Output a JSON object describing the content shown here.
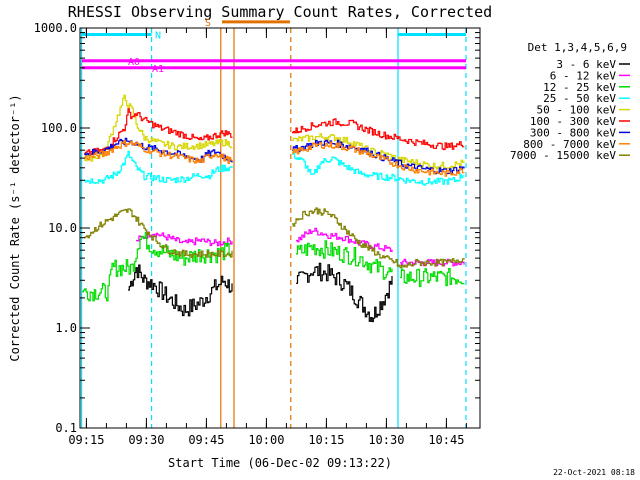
{
  "chart_data": {
    "type": "line",
    "title": "RHESSI Observing Summary Count Rates, Corrected",
    "xlabel": "Start Time (06-Dec-02 09:13:22)",
    "ylabel": "Corrected Count Rate (s⁻¹ detector⁻¹)",
    "yscale": "log",
    "ylim": [
      0.1,
      1000
    ],
    "xlim_min": [
      0,
      100
    ],
    "y_ticks": [
      {
        "value": 0.1,
        "label": "0.1"
      },
      {
        "value": 1,
        "label": "1.0"
      },
      {
        "value": 10,
        "label": "10.0"
      },
      {
        "value": 100,
        "label": "100.0"
      },
      {
        "value": 1000,
        "label": "1000.0"
      }
    ],
    "x_ticks": [
      {
        "value": 1.6,
        "label": "09:15"
      },
      {
        "value": 16.6,
        "label": "09:30"
      },
      {
        "value": 31.6,
        "label": "09:45"
      },
      {
        "value": 46.6,
        "label": "10:00"
      },
      {
        "value": 61.6,
        "label": "10:15"
      },
      {
        "value": 76.6,
        "label": "10:30"
      },
      {
        "value": 91.6,
        "label": "10:45"
      }
    ],
    "legend_title": "Det 1,3,4,5,6,9",
    "series": [
      {
        "name": "3 - 6 keV",
        "color": "#000000",
        "values": [
          [
            1,
            null
          ],
          [
            12,
            2.4
          ],
          [
            14,
            4.0
          ],
          [
            16,
            3.0
          ],
          [
            18,
            2.8
          ],
          [
            22,
            2.0
          ],
          [
            26,
            1.5
          ],
          [
            30,
            1.8
          ],
          [
            34,
            2.6
          ],
          [
            36,
            3.0
          ],
          [
            38,
            2.5
          ],
          [
            38.5,
            null
          ],
          [
            52,
            null
          ],
          [
            54,
            2.8
          ],
          [
            58,
            3.8
          ],
          [
            62,
            3.5
          ],
          [
            66,
            2.8
          ],
          [
            70,
            1.8
          ],
          [
            73,
            1.3
          ],
          [
            76,
            2.0
          ],
          [
            78,
            3.0
          ],
          [
            79.5,
            null
          ]
        ]
      },
      {
        "name": "6 - 12 keV",
        "color": "#ff00ff",
        "values": [
          [
            14,
            7.5
          ],
          [
            18,
            9.0
          ],
          [
            22,
            8.0
          ],
          [
            26,
            7.0
          ],
          [
            30,
            7.5
          ],
          [
            34,
            7.0
          ],
          [
            38,
            7.5
          ],
          [
            38.5,
            null
          ],
          [
            52,
            null
          ],
          [
            54,
            7.5
          ],
          [
            58,
            9.5
          ],
          [
            62,
            8.5
          ],
          [
            66,
            8.0
          ],
          [
            70,
            7.0
          ],
          [
            74,
            6.5
          ],
          [
            78,
            6.0
          ],
          [
            79.5,
            null
          ],
          [
            80,
            4.5
          ],
          [
            88,
            4.5
          ],
          [
            96,
            4.5
          ]
        ]
      },
      {
        "name": "12 - 25 keV",
        "color": "#00dd00",
        "values": [
          [
            0.5,
            2.3
          ],
          [
            7,
            2.3
          ],
          [
            8,
            4.0
          ],
          [
            13,
            4.0
          ],
          [
            15,
            8.5
          ],
          [
            18,
            6.5
          ],
          [
            22,
            5.5
          ],
          [
            26,
            5.0
          ],
          [
            30,
            5.5
          ],
          [
            34,
            5.5
          ],
          [
            38,
            6.0
          ],
          [
            38.5,
            null
          ],
          [
            52,
            null
          ],
          [
            54,
            5.5
          ],
          [
            58,
            6.5
          ],
          [
            62,
            6.0
          ],
          [
            66,
            5.5
          ],
          [
            70,
            5.0
          ],
          [
            74,
            4.0
          ],
          [
            78,
            3.5
          ],
          [
            79.5,
            null
          ],
          [
            80,
            3.2
          ],
          [
            88,
            3.2
          ],
          [
            96,
            3.2
          ]
        ]
      },
      {
        "name": "25 - 50 keV",
        "color": "#00ffff",
        "values": [
          [
            1,
            30
          ],
          [
            6,
            30
          ],
          [
            9,
            35
          ],
          [
            11,
            45
          ],
          [
            12,
            55
          ],
          [
            14,
            40
          ],
          [
            16,
            33
          ],
          [
            18,
            32
          ],
          [
            22,
            30
          ],
          [
            26,
            31
          ],
          [
            30,
            34
          ],
          [
            32,
            33
          ],
          [
            34,
            38
          ],
          [
            36,
            40
          ],
          [
            38,
            40
          ],
          [
            38.5,
            null
          ],
          [
            52,
            null
          ],
          [
            53,
            55
          ],
          [
            56,
            45
          ],
          [
            58,
            32
          ],
          [
            60,
            45
          ],
          [
            63,
            50
          ],
          [
            66,
            42
          ],
          [
            70,
            35
          ],
          [
            74,
            33
          ],
          [
            78,
            32
          ],
          [
            82,
            30
          ],
          [
            86,
            29
          ],
          [
            90,
            29
          ],
          [
            94,
            30
          ],
          [
            96,
            35
          ]
        ]
      },
      {
        "name": "50 - 100 keV",
        "color": "#d6d600",
        "values": [
          [
            1,
            48
          ],
          [
            6,
            55
          ],
          [
            9,
            120
          ],
          [
            11,
            200
          ],
          [
            12,
            170
          ],
          [
            13,
            150
          ],
          [
            14,
            110
          ],
          [
            16,
            80
          ],
          [
            20,
            70
          ],
          [
            24,
            65
          ],
          [
            28,
            66
          ],
          [
            32,
            68
          ],
          [
            34,
            70
          ],
          [
            36,
            72
          ],
          [
            38,
            68
          ],
          [
            38.5,
            null
          ],
          [
            52,
            null
          ],
          [
            53,
            75
          ],
          [
            56,
            78
          ],
          [
            60,
            82
          ],
          [
            64,
            80
          ],
          [
            68,
            72
          ],
          [
            72,
            60
          ],
          [
            76,
            55
          ],
          [
            80,
            48
          ],
          [
            84,
            45
          ],
          [
            88,
            42
          ],
          [
            92,
            42
          ],
          [
            96,
            45
          ]
        ]
      },
      {
        "name": "100 - 300 keV",
        "color": "#ff0000",
        "values": [
          [
            1,
            55
          ],
          [
            6,
            60
          ],
          [
            9,
            80
          ],
          [
            11,
            100
          ],
          [
            12,
            145
          ],
          [
            13,
            130
          ],
          [
            14,
            140
          ],
          [
            16,
            120
          ],
          [
            20,
            100
          ],
          [
            24,
            90
          ],
          [
            28,
            80
          ],
          [
            30,
            75
          ],
          [
            32,
            80
          ],
          [
            34,
            85
          ],
          [
            36,
            90
          ],
          [
            38,
            85
          ],
          [
            38.5,
            null
          ],
          [
            52,
            null
          ],
          [
            53,
            90
          ],
          [
            56,
            100
          ],
          [
            60,
            110
          ],
          [
            64,
            115
          ],
          [
            68,
            110
          ],
          [
            72,
            95
          ],
          [
            76,
            85
          ],
          [
            80,
            78
          ],
          [
            84,
            72
          ],
          [
            88,
            68
          ],
          [
            92,
            65
          ],
          [
            96,
            70
          ]
        ]
      },
      {
        "name": "300 - 800 keV",
        "color": "#0000dd",
        "values": [
          [
            1,
            55
          ],
          [
            6,
            60
          ],
          [
            9,
            70
          ],
          [
            11,
            72
          ],
          [
            12,
            75
          ],
          [
            14,
            70
          ],
          [
            16,
            65
          ],
          [
            20,
            60
          ],
          [
            24,
            55
          ],
          [
            28,
            50
          ],
          [
            30,
            48
          ],
          [
            32,
            55
          ],
          [
            34,
            58
          ],
          [
            36,
            52
          ],
          [
            38,
            48
          ],
          [
            38.5,
            null
          ],
          [
            52,
            null
          ],
          [
            53,
            60
          ],
          [
            56,
            65
          ],
          [
            60,
            72
          ],
          [
            64,
            70
          ],
          [
            68,
            65
          ],
          [
            72,
            58
          ],
          [
            76,
            50
          ],
          [
            80,
            44
          ],
          [
            84,
            40
          ],
          [
            88,
            38
          ],
          [
            92,
            37
          ],
          [
            96,
            40
          ]
        ]
      },
      {
        "name": "800 - 7000 keV",
        "color": "#ff8000",
        "values": [
          [
            1,
            50
          ],
          [
            6,
            55
          ],
          [
            9,
            65
          ],
          [
            11,
            70
          ],
          [
            12,
            72
          ],
          [
            14,
            68
          ],
          [
            16,
            62
          ],
          [
            20,
            56
          ],
          [
            24,
            52
          ],
          [
            28,
            48
          ],
          [
            30,
            46
          ],
          [
            32,
            52
          ],
          [
            34,
            56
          ],
          [
            36,
            50
          ],
          [
            38,
            46
          ],
          [
            38.5,
            null
          ],
          [
            52,
            null
          ],
          [
            53,
            56
          ],
          [
            56,
            62
          ],
          [
            60,
            68
          ],
          [
            64,
            67
          ],
          [
            68,
            62
          ],
          [
            72,
            55
          ],
          [
            76,
            48
          ],
          [
            80,
            42
          ],
          [
            84,
            38
          ],
          [
            88,
            36
          ],
          [
            92,
            35
          ],
          [
            96,
            38
          ]
        ]
      },
      {
        "name": "7000 - 15000 keV",
        "color": "#808000",
        "values": [
          [
            1,
            8.0
          ],
          [
            4,
            10
          ],
          [
            7,
            12
          ],
          [
            10,
            14
          ],
          [
            12,
            15
          ],
          [
            13,
            14
          ],
          [
            15,
            11
          ],
          [
            17,
            9.0
          ],
          [
            19,
            7.5
          ],
          [
            22,
            6.0
          ],
          [
            26,
            5.5
          ],
          [
            30,
            5.5
          ],
          [
            34,
            5.5
          ],
          [
            38,
            5.5
          ],
          [
            38.5,
            null
          ],
          [
            52,
            null
          ],
          [
            53,
            11
          ],
          [
            56,
            14
          ],
          [
            59,
            15
          ],
          [
            62,
            14
          ],
          [
            64,
            12
          ],
          [
            67,
            9.0
          ],
          [
            70,
            7.0
          ],
          [
            73,
            6.0
          ],
          [
            76,
            5.0
          ],
          [
            79,
            4.5
          ],
          [
            80,
            4.0
          ],
          [
            84,
            4.5
          ],
          [
            88,
            4.5
          ],
          [
            92,
            4.5
          ],
          [
            96,
            5.0
          ]
        ]
      }
    ],
    "vertical_lines": [
      {
        "x": 0.4,
        "color": "#00e0ff",
        "style": "solid"
      },
      {
        "x": 17.9,
        "color": "#00e0ff",
        "style": "dashed"
      },
      {
        "x": 35.2,
        "color": "#e07000",
        "style": "solid"
      },
      {
        "x": 38.5,
        "color": "#e07000",
        "style": "solid"
      },
      {
        "x": 52.7,
        "color": "#e07000",
        "style": "dashed"
      },
      {
        "x": 79.5,
        "color": "#00e0ff",
        "style": "solid"
      },
      {
        "x": 96.5,
        "color": "#00e0ff",
        "style": "dashed"
      }
    ],
    "flag_bars": [
      {
        "label": "N",
        "color": "#00e0ff",
        "x_start": 0.5,
        "x_end": 17.9,
        "y": 860,
        "label_x": 19.5
      },
      {
        "label": "S",
        "color": "#e07000",
        "x_start": 35.5,
        "x_end": 52.5,
        "y": 1150,
        "label_x": 32.0
      },
      {
        "label": "A0",
        "color": "#ff00ff",
        "x_start": 0.5,
        "x_end": 96.5,
        "y": 470,
        "label_x": 13.5
      },
      {
        "label": "A1",
        "color": "#ff00ff",
        "x_start": 0.5,
        "x_end": 96.5,
        "y": 400,
        "label_x": 19.5
      },
      {
        "label": "",
        "color": "#00e0ff",
        "x_start": 79.5,
        "x_end": 96.5,
        "y": 860,
        "label_x": 0
      }
    ]
  },
  "footer": {
    "timestamp": "22-Oct-2021 08:18"
  }
}
